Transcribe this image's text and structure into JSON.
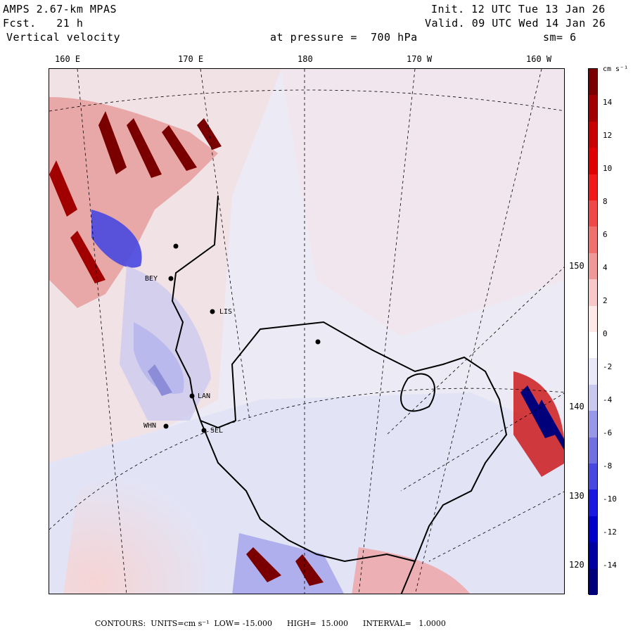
{
  "header": {
    "model": "AMPS 2.67-km MPAS",
    "forecast": "Fcst.   21 h",
    "field": "Vertical velocity",
    "init": "Init. 12 UTC Tue 13 Jan 26",
    "valid": "Valid. 09 UTC Wed 14 Jan 26",
    "level": "at pressure =  700 hPa",
    "smoothing": "sm= 6"
  },
  "longitude_labels": [
    "160 E",
    "170 E",
    "180",
    "170 W",
    "160 W"
  ],
  "latitude_labels": [
    "150 W",
    "140 W",
    "130 W",
    "120 W"
  ],
  "stations": [
    "LIS",
    "LAN",
    "WHN",
    "SEL",
    "BEY"
  ],
  "colorbar": {
    "unit": "cm s⁻¹",
    "ticks": [
      "14",
      "12",
      "10",
      "8",
      "6",
      "4",
      "2",
      "0",
      "-2",
      "-4",
      "-6",
      "-8",
      "-10",
      "-12",
      "-14"
    ],
    "colors": [
      "#7a0000",
      "#a00000",
      "#c80000",
      "#e00000",
      "#f01818",
      "#f04848",
      "#f07070",
      "#f09898",
      "#f8c8c8",
      "#ffe8e8",
      "#ffffff",
      "#e8e8f8",
      "#c8c8f0",
      "#9898e8",
      "#7070e0",
      "#4848e0",
      "#1818e0",
      "#0000c8",
      "#0000a0",
      "#00007a"
    ]
  },
  "footer": {
    "contours": "CONTOURS:  UNITS=cm s⁻¹  LOW= -15.000      HIGH=  15.000      INTERVAL=   1.0000"
  }
}
